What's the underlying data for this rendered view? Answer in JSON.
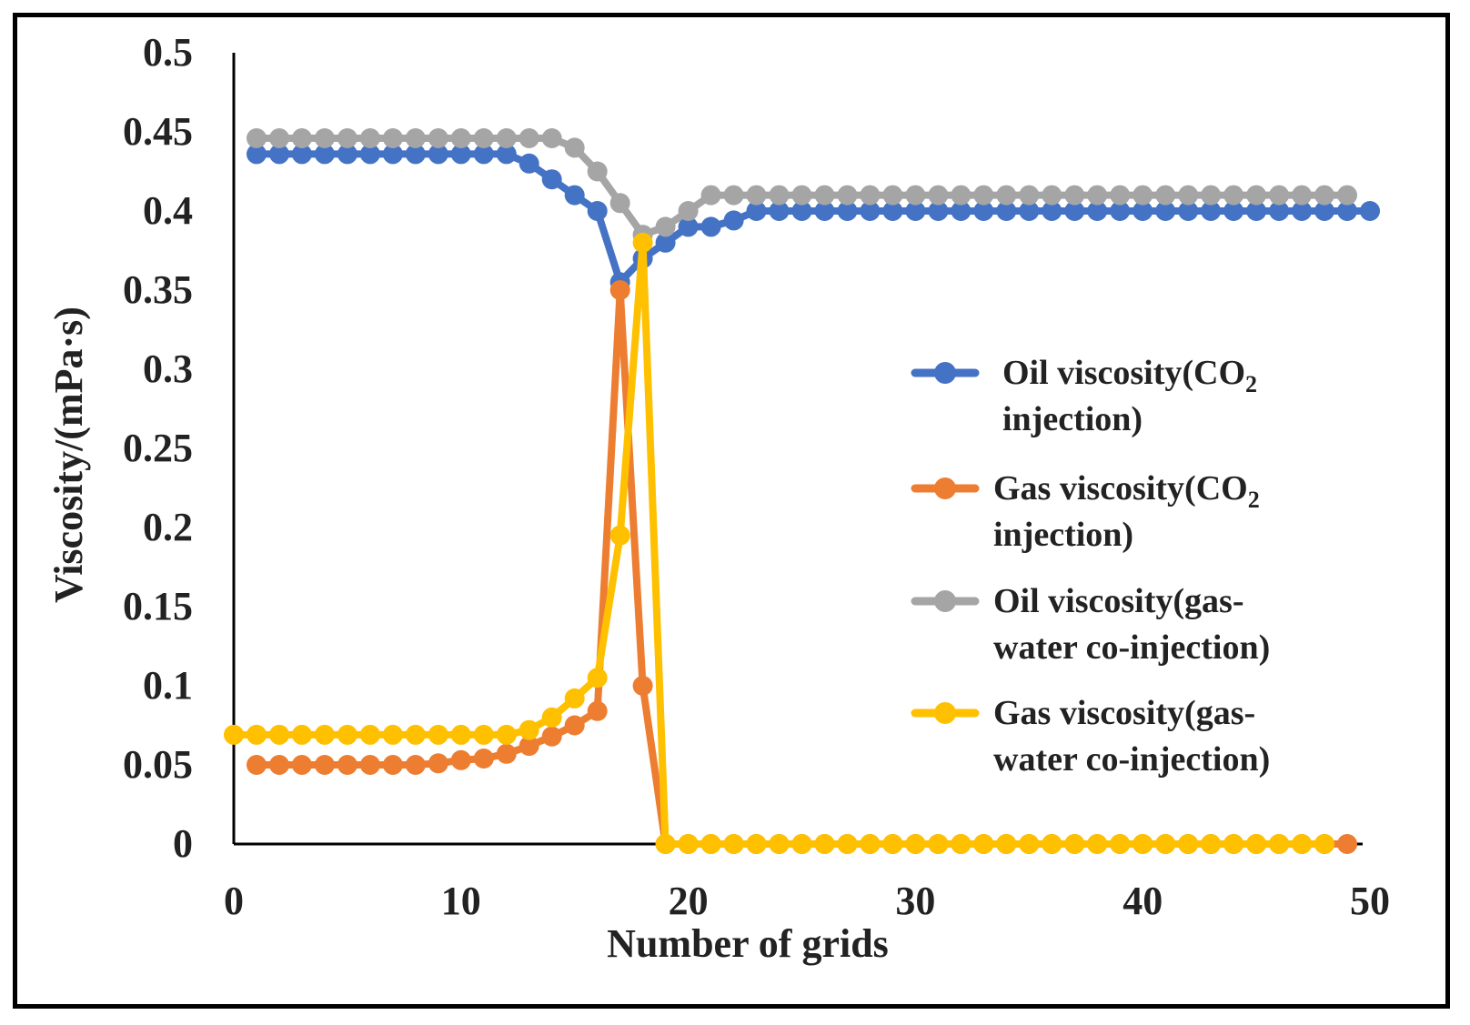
{
  "chart_data": {
    "type": "line",
    "title": "",
    "xlabel": "Number of grids",
    "ylabel": "Viscosity/(mPa·s)",
    "xlim": [
      0,
      50
    ],
    "ylim": [
      0,
      0.5
    ],
    "xticks": [
      0,
      10,
      20,
      30,
      40,
      50
    ],
    "yticks": [
      0,
      0.05,
      0.1,
      0.15,
      0.2,
      0.25,
      0.3,
      0.35,
      0.4,
      0.45,
      0.5
    ],
    "ytick_labels": [
      "0",
      "0.05",
      "0.1",
      "0.15",
      "0.2",
      "0.25",
      "0.3",
      "0.35",
      "0.4",
      "0.45",
      "0.5"
    ],
    "xtick_labels": [
      "0",
      "10",
      "20",
      "30",
      "40",
      "50"
    ],
    "grid": false,
    "legend_position": "right",
    "series": [
      {
        "name": "Oil viscosity(CO2 injection)",
        "legend_lines": [
          "Oil viscosity(CO",
          "injection)"
        ],
        "legend_subscript": "2",
        "color": "#4472C4",
        "x": [
          1,
          2,
          3,
          4,
          5,
          6,
          7,
          8,
          9,
          10,
          11,
          12,
          13,
          14,
          15,
          16,
          17,
          18,
          19,
          20,
          21,
          22,
          23,
          24,
          25,
          26,
          27,
          28,
          29,
          30,
          31,
          32,
          33,
          34,
          35,
          36,
          37,
          38,
          39,
          40,
          41,
          42,
          43,
          44,
          45,
          46,
          47,
          48,
          49,
          50
        ],
        "values": [
          0.436,
          0.436,
          0.436,
          0.436,
          0.436,
          0.436,
          0.436,
          0.436,
          0.436,
          0.436,
          0.436,
          0.436,
          0.43,
          0.42,
          0.41,
          0.4,
          0.355,
          0.37,
          0.38,
          0.39,
          0.39,
          0.394,
          0.4,
          0.4,
          0.4,
          0.4,
          0.4,
          0.4,
          0.4,
          0.4,
          0.4,
          0.4,
          0.4,
          0.4,
          0.4,
          0.4,
          0.4,
          0.4,
          0.4,
          0.4,
          0.4,
          0.4,
          0.4,
          0.4,
          0.4,
          0.4,
          0.4,
          0.4,
          0.4,
          0.4
        ]
      },
      {
        "name": "Gas viscosity(CO2 injection)",
        "legend_lines": [
          "Gas viscosity(CO",
          "injection)"
        ],
        "legend_subscript": "2",
        "color": "#ED7D31",
        "x": [
          1,
          2,
          3,
          4,
          5,
          6,
          7,
          8,
          9,
          10,
          11,
          12,
          13,
          14,
          15,
          16,
          17,
          18,
          19,
          20,
          21,
          22,
          23,
          24,
          25,
          26,
          27,
          28,
          29,
          30,
          31,
          32,
          33,
          34,
          35,
          36,
          37,
          38,
          39,
          40,
          41,
          42,
          43,
          44,
          45,
          46,
          47,
          48,
          49
        ],
        "values": [
          0.05,
          0.05,
          0.05,
          0.05,
          0.05,
          0.05,
          0.05,
          0.05,
          0.051,
          0.053,
          0.054,
          0.057,
          0.062,
          0.068,
          0.075,
          0.084,
          0.35,
          0.1,
          0,
          0,
          0,
          0,
          0,
          0,
          0,
          0,
          0,
          0,
          0,
          0,
          0,
          0,
          0,
          0,
          0,
          0,
          0,
          0,
          0,
          0,
          0,
          0,
          0,
          0,
          0,
          0,
          0,
          0,
          0
        ]
      },
      {
        "name": "Oil viscosity(gas-water co-injection)",
        "legend_lines": [
          "Oil viscosity(gas-",
          "water co-injection)"
        ],
        "legend_subscript": "",
        "color": "#A5A5A5",
        "x": [
          1,
          2,
          3,
          4,
          5,
          6,
          7,
          8,
          9,
          10,
          11,
          12,
          13,
          14,
          15,
          16,
          17,
          18,
          19,
          20,
          21,
          22,
          23,
          24,
          25,
          26,
          27,
          28,
          29,
          30,
          31,
          32,
          33,
          34,
          35,
          36,
          37,
          38,
          39,
          40,
          41,
          42,
          43,
          44,
          45,
          46,
          47,
          48,
          49
        ],
        "values": [
          0.446,
          0.446,
          0.446,
          0.446,
          0.446,
          0.446,
          0.446,
          0.446,
          0.446,
          0.446,
          0.446,
          0.446,
          0.446,
          0.446,
          0.44,
          0.425,
          0.405,
          0.385,
          0.39,
          0.4,
          0.41,
          0.41,
          0.41,
          0.41,
          0.41,
          0.41,
          0.41,
          0.41,
          0.41,
          0.41,
          0.41,
          0.41,
          0.41,
          0.41,
          0.41,
          0.41,
          0.41,
          0.41,
          0.41,
          0.41,
          0.41,
          0.41,
          0.41,
          0.41,
          0.41,
          0.41,
          0.41,
          0.41,
          0.41
        ]
      },
      {
        "name": "Gas viscosity(gas-water co-injection)",
        "legend_lines": [
          "Gas viscosity(gas-",
          "water co-injection)"
        ],
        "legend_subscript": "",
        "color": "#FFC000",
        "x": [
          0,
          1,
          2,
          3,
          4,
          5,
          6,
          7,
          8,
          9,
          10,
          11,
          12,
          13,
          14,
          15,
          16,
          17,
          18,
          19,
          20,
          21,
          22,
          23,
          24,
          25,
          26,
          27,
          28,
          29,
          30,
          31,
          32,
          33,
          34,
          35,
          36,
          37,
          38,
          39,
          40,
          41,
          42,
          43,
          44,
          45,
          46,
          47,
          48
        ],
        "values": [
          0.069,
          0.069,
          0.069,
          0.069,
          0.069,
          0.069,
          0.069,
          0.069,
          0.069,
          0.069,
          0.069,
          0.069,
          0.069,
          0.072,
          0.08,
          0.092,
          0.105,
          0.195,
          0.38,
          0,
          0,
          0,
          0,
          0,
          0,
          0,
          0,
          0,
          0,
          0,
          0,
          0,
          0,
          0,
          0,
          0,
          0,
          0,
          0,
          0,
          0,
          0,
          0,
          0,
          0,
          0,
          0,
          0,
          0
        ]
      }
    ]
  }
}
